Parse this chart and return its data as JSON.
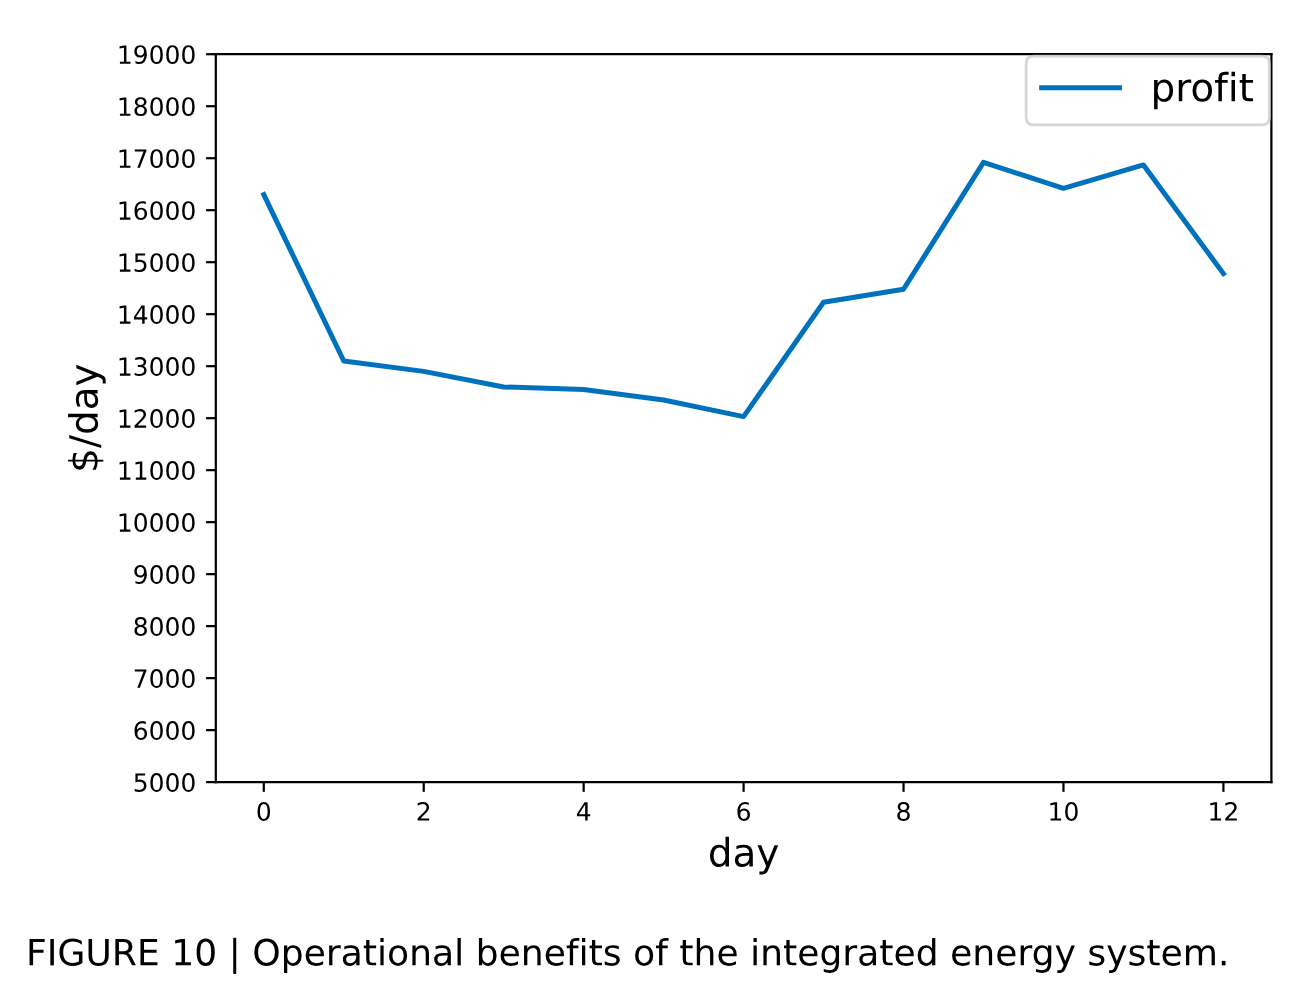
{
  "chart_data": {
    "type": "line",
    "xlabel": "day",
    "ylabel": "$/day",
    "x": [
      0,
      1,
      2,
      3,
      4,
      5,
      6,
      7,
      8,
      9,
      10,
      11,
      12
    ],
    "series": [
      {
        "name": "profit",
        "color": "#0072bd",
        "values": [
          16300,
          13100,
          12900,
          12600,
          12550,
          12350,
          12030,
          14230,
          14480,
          16920,
          16420,
          16870,
          14780
        ]
      }
    ],
    "xlim": [
      -0.6,
      12.6
    ],
    "xticks": [
      0,
      2,
      4,
      6,
      8,
      10,
      12
    ],
    "ylim": [
      5000,
      19000
    ],
    "yticks": [
      5000,
      6000,
      7000,
      8000,
      9000,
      10000,
      11000,
      12000,
      13000,
      14000,
      15000,
      16000,
      17000,
      18000,
      19000
    ],
    "legend": "top right",
    "grid": false,
    "annotations": [
      "FIGURE 10 | Operational benefits of the integrated energy system."
    ]
  }
}
